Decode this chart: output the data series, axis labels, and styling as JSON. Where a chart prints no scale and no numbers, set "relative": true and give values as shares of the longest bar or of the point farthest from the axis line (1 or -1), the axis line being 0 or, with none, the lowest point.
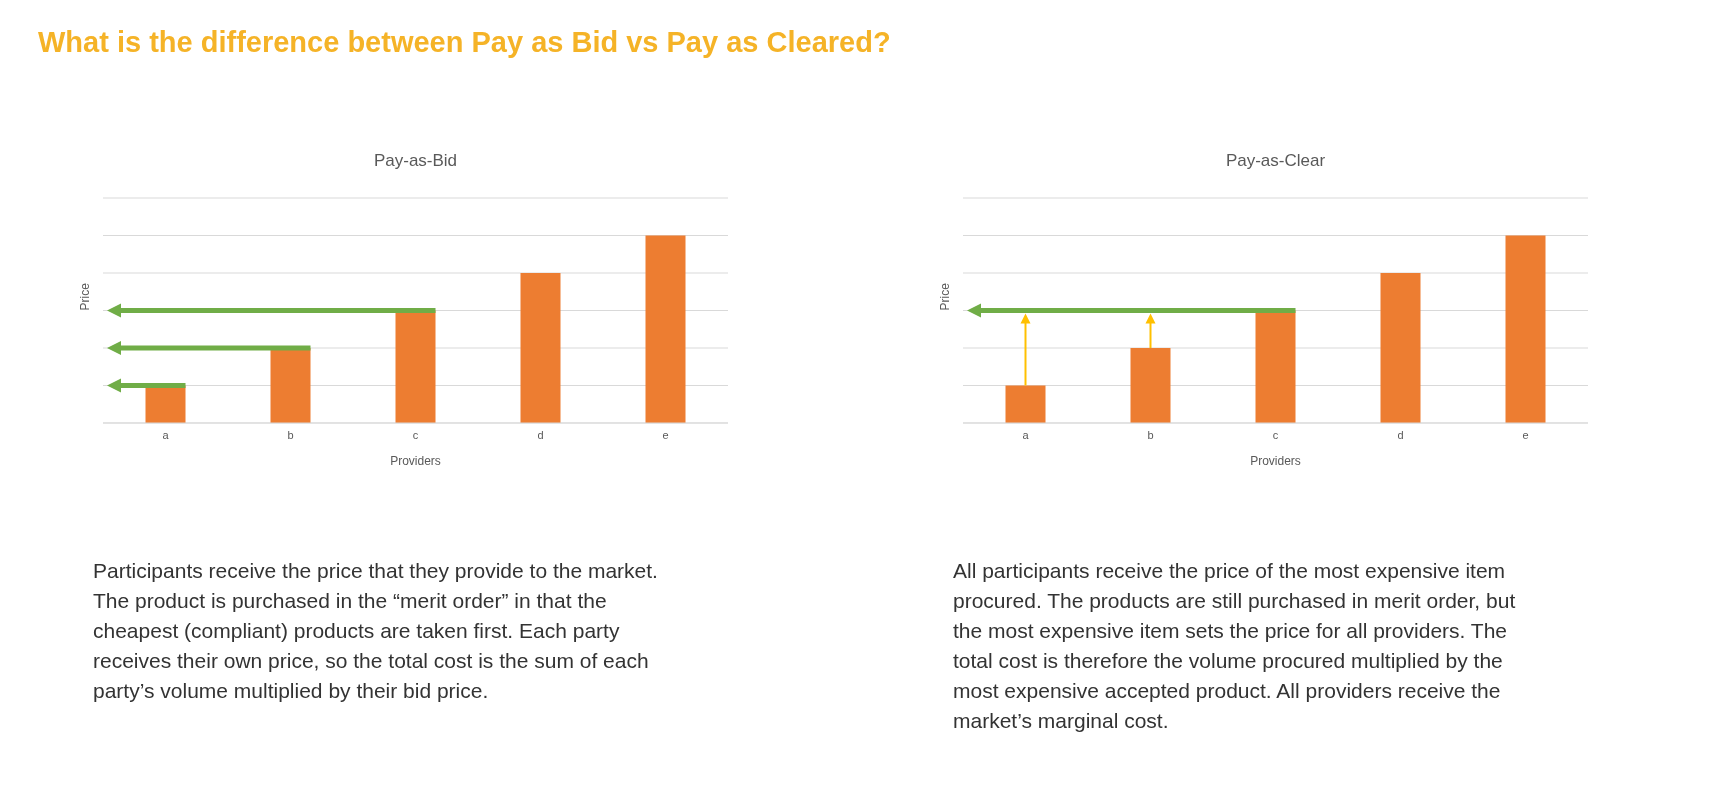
{
  "chart_data": [
    {
      "type": "bar",
      "title": "Pay-as-Bid",
      "xlabel": "Providers",
      "ylabel": "Price",
      "categories": [
        "a",
        "b",
        "c",
        "d",
        "e"
      ],
      "values": [
        0.2,
        0.4,
        0.6,
        0.8,
        1
      ],
      "color": "#ed7d31",
      "relative": true,
      "grid": "y",
      "annotations": [
        "What is the difference between Pay as Bid vs Pay as Cleared?",
        "Participants receive the price that they provide to the market. The product is purchased in the “merit order” in that the cheapest (compliant) products are taken first. Each party receives their own price, so the total cost is the sum of each party’s volume multiplied by their bid price."
      ]
    },
    {
      "type": "bar",
      "title": "Pay-as-Clear",
      "xlabel": "Providers",
      "ylabel": "Price",
      "categories": [
        "a",
        "b",
        "c",
        "d",
        "e"
      ],
      "values": [
        0.2,
        0.4,
        0.6,
        0.8,
        1
      ],
      "color": "#ed7d31",
      "relative": true,
      "grid": "y",
      "annotations": [
        "All participants receive the price of the most expensive item procured. The products are still purchased in merit order, but the most expensive item sets the price for all providers. The total cost is therefore the volume procured multiplied by the most expensive accepted product. All providers receive the market’s marginal cost."
      ]
    }
  ]
}
